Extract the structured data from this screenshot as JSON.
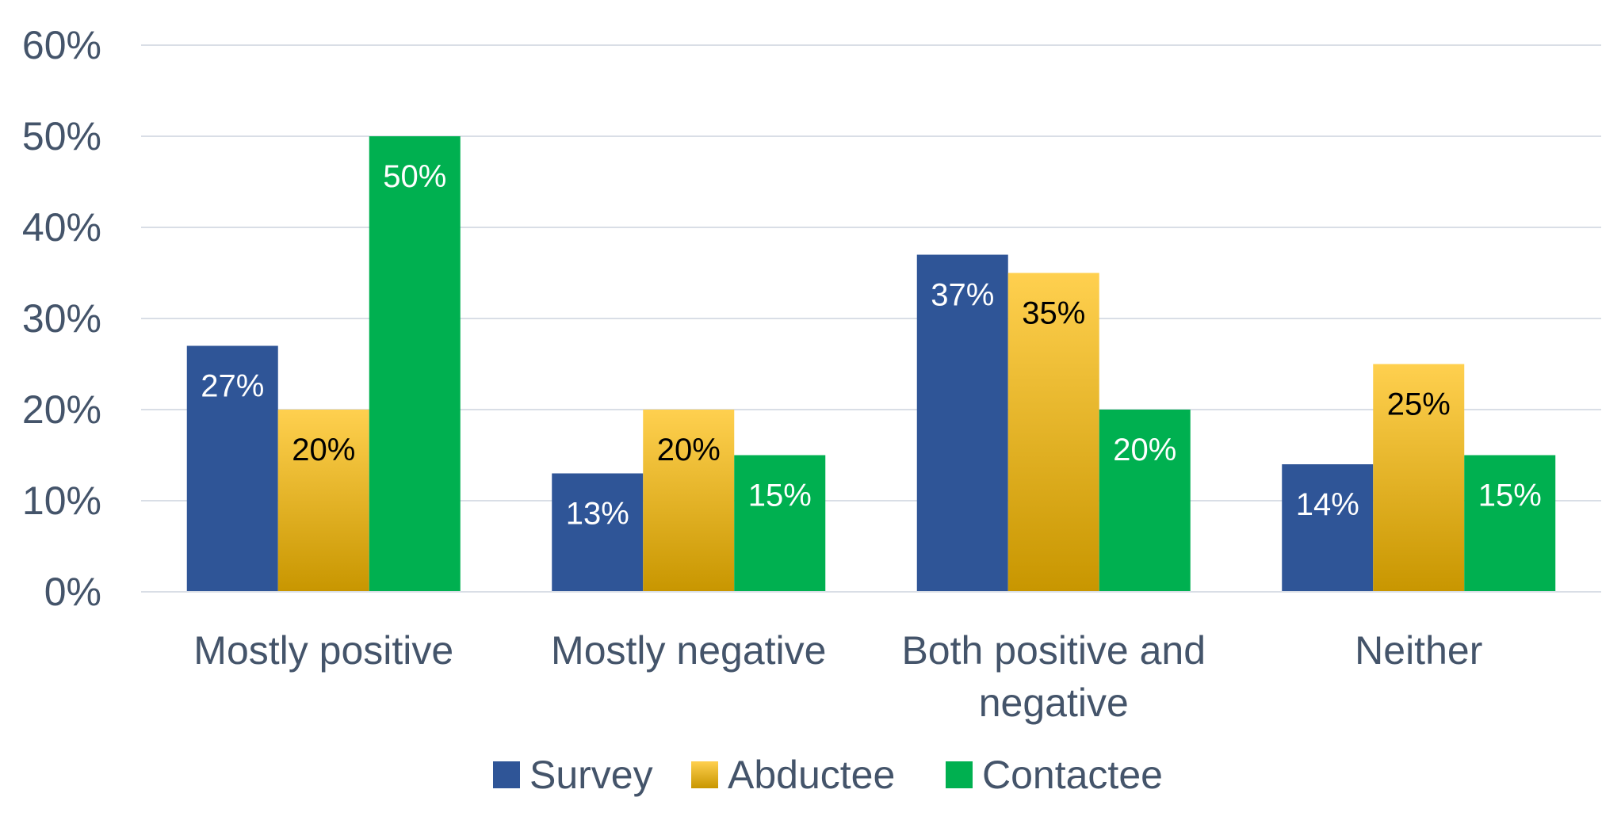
{
  "chart_data": {
    "type": "bar",
    "title": "",
    "xlabel": "",
    "ylabel": "",
    "categories": [
      [
        "Mostly positive"
      ],
      [
        "Mostly negative"
      ],
      [
        "Both positive and",
        "negative"
      ],
      [
        "Neither"
      ]
    ],
    "series": [
      {
        "name": "Survey",
        "color": "#2f5597",
        "label_color": "#ffffff",
        "gradient": false,
        "values": [
          27,
          13,
          37,
          14
        ]
      },
      {
        "name": "Abductee",
        "color": "#ffc000",
        "gradient_colors": [
          "#ffd04f",
          "#c89600"
        ],
        "label_color": "#000000",
        "gradient": true,
        "values": [
          20,
          20,
          35,
          25
        ]
      },
      {
        "name": "Contactee",
        "color": "#00b050",
        "label_color": "#ffffff",
        "gradient": false,
        "values": [
          50,
          15,
          20,
          15
        ]
      }
    ],
    "value_suffix": "%",
    "ylim": [
      0,
      60
    ],
    "yticks": [
      0,
      10,
      20,
      30,
      40,
      50,
      60
    ],
    "ytick_labels": [
      "0%",
      "10%",
      "20%",
      "30%",
      "40%",
      "50%",
      "60%"
    ],
    "grid": true,
    "gridline_color": "#d9dee6",
    "text_color": "#44546a",
    "legend_position": "bottom"
  }
}
